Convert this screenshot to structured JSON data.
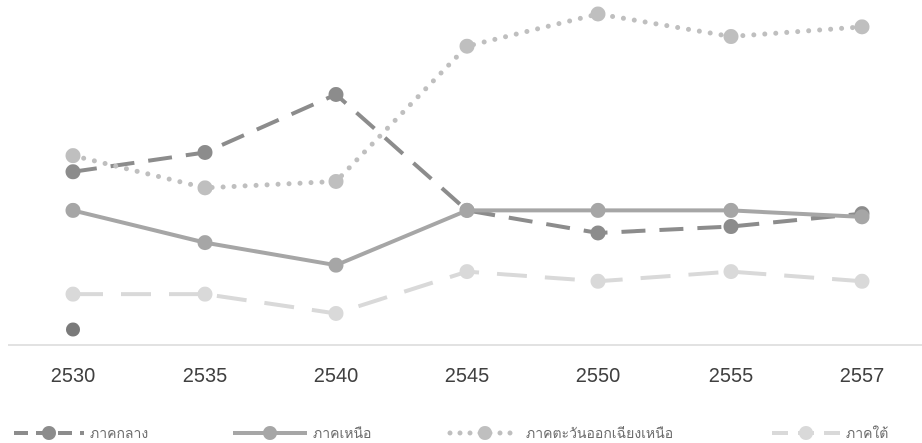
{
  "chart_data": {
    "type": "line",
    "title": "",
    "xlabel": "",
    "ylabel": "",
    "categories": [
      "2530",
      "2535",
      "2540",
      "2545",
      "2550",
      "2555",
      "2557"
    ],
    "ylim": [
      0,
      100
    ],
    "grid": false,
    "legend_position": "bottom",
    "series": [
      {
        "name": "ภาคกลาง",
        "values": [
          51,
          57,
          75,
          39,
          32,
          34,
          38
        ],
        "color": "#8c8c8c",
        "dash": "dashed"
      },
      {
        "name": "ภาคเหนือ",
        "values": [
          39,
          29,
          22,
          39,
          39,
          39,
          37
        ],
        "color": "#a6a6a6",
        "dash": "solid"
      },
      {
        "name": "ภาคตะวันออกเฉียงเหนือ",
        "values": [
          56,
          46,
          48,
          90,
          100,
          93,
          96
        ],
        "color": "#bfbfbf",
        "dash": "dotted"
      },
      {
        "name": "ภาคใต้",
        "values": [
          13,
          13,
          7,
          20,
          17,
          20,
          17
        ],
        "color": "#d9d9d9",
        "dash": "long-dashed"
      }
    ],
    "outlier_point": {
      "category": "2530",
      "value": 2,
      "color": "#7a7a7a"
    }
  }
}
